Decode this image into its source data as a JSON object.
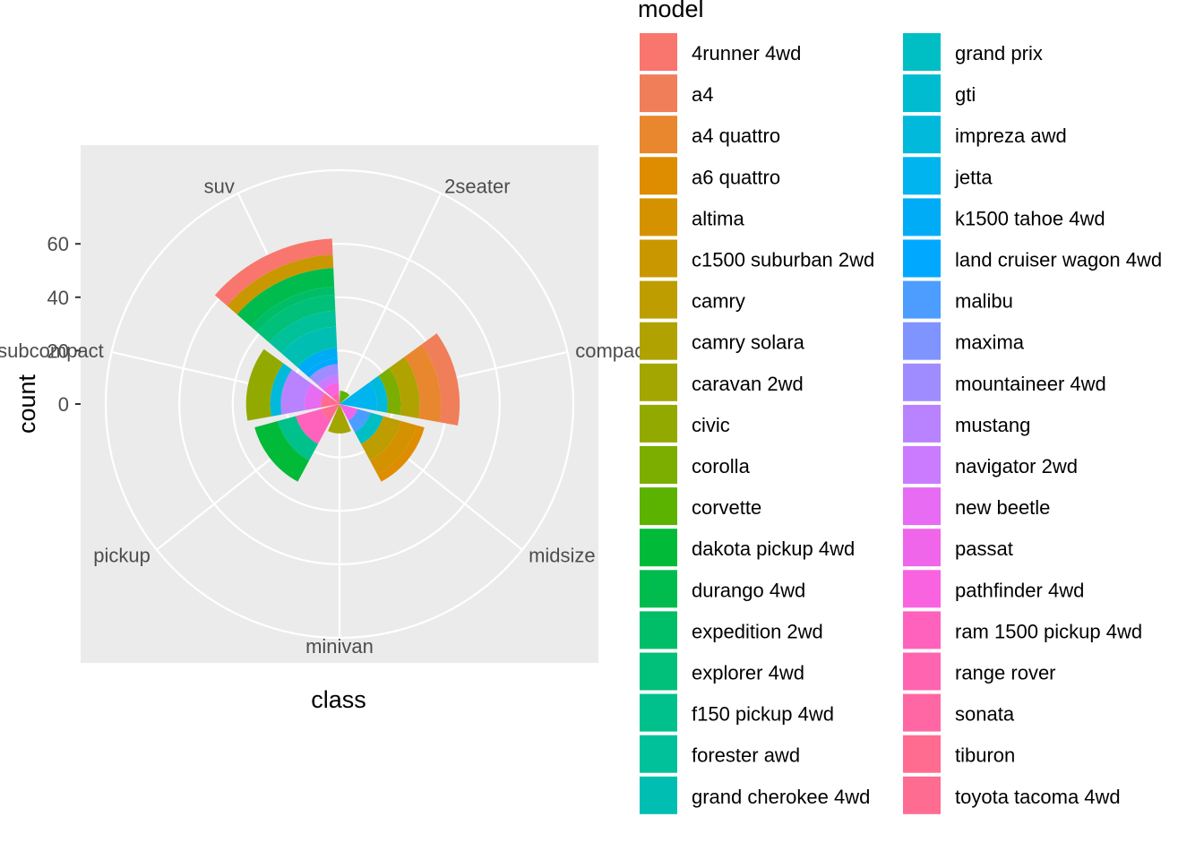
{
  "chart_data": {
    "type": "bar",
    "coord": "polar",
    "title": "",
    "xlabel": "class",
    "ylabel": "count",
    "legend_title": "model",
    "legend_position": "right",
    "ylim": [
      0,
      70
    ],
    "y_ticks": [
      0,
      20,
      40,
      60
    ],
    "y_tick_labels": [
      "0",
      "20",
      "40",
      "60"
    ],
    "categories": [
      "2seater",
      "compact",
      "midsize",
      "minivan",
      "pickup",
      "subcompact",
      "suv"
    ],
    "category_labels": [
      "2seater",
      "compact",
      "midsize",
      "minivan",
      "pickup",
      "subcompact",
      "suv"
    ],
    "models": [
      {
        "name": "4runner 4wd",
        "color": "#F8766D"
      },
      {
        "name": "a4",
        "color": "#F07E59"
      },
      {
        "name": "a4 quattro",
        "color": "#E8872E"
      },
      {
        "name": "a6 quattro",
        "color": "#DE8C00"
      },
      {
        "name": "altima",
        "color": "#D49200"
      },
      {
        "name": "c1500 suburban 2wd",
        "color": "#C99800"
      },
      {
        "name": "camry",
        "color": "#BD9D00"
      },
      {
        "name": "camry solara",
        "color": "#B0A200"
      },
      {
        "name": "caravan 2wd",
        "color": "#A3A500"
      },
      {
        "name": "civic",
        "color": "#92AA00"
      },
      {
        "name": "corolla",
        "color": "#7CAE00"
      },
      {
        "name": "corvette",
        "color": "#5BB300"
      },
      {
        "name": "dakota pickup 4wd",
        "color": "#00BA38"
      },
      {
        "name": "durango 4wd",
        "color": "#00BC4E"
      },
      {
        "name": "expedition 2wd",
        "color": "#00BE67"
      },
      {
        "name": "explorer 4wd",
        "color": "#00C07A"
      },
      {
        "name": "f150 pickup 4wd",
        "color": "#00C08B"
      },
      {
        "name": "forester awd",
        "color": "#00C19A"
      },
      {
        "name": "grand cherokee 4wd",
        "color": "#00BFB2"
      },
      {
        "name": "grand prix",
        "color": "#00BFC4"
      },
      {
        "name": "gti",
        "color": "#00BCD0"
      },
      {
        "name": "impreza awd",
        "color": "#00B9DB"
      },
      {
        "name": "jetta",
        "color": "#00B4EF"
      },
      {
        "name": "k1500 tahoe 4wd",
        "color": "#00ACF6"
      },
      {
        "name": "land cruiser wagon 4wd",
        "color": "#00A9FF"
      },
      {
        "name": "malibu",
        "color": "#4C9DFF"
      },
      {
        "name": "maxima",
        "color": "#7F94FF"
      },
      {
        "name": "mountaineer 4wd",
        "color": "#9F8CFF"
      },
      {
        "name": "mustang",
        "color": "#B983FF"
      },
      {
        "name": "navigator 2wd",
        "color": "#CB7BFF"
      },
      {
        "name": "new beetle",
        "color": "#E76BF3"
      },
      {
        "name": "passat",
        "color": "#F066EA"
      },
      {
        "name": "pathfinder 4wd",
        "color": "#F963DF"
      },
      {
        "name": "ram 1500 pickup 4wd",
        "color": "#FF62BC"
      },
      {
        "name": "range rover",
        "color": "#FF64B0"
      },
      {
        "name": "sonata",
        "color": "#FF67A4"
      },
      {
        "name": "tiburon",
        "color": "#FF6C90"
      },
      {
        "name": "toyota tacoma 4wd",
        "color": "#FF6C91"
      }
    ],
    "series": [
      {
        "category": "2seater",
        "stack": [
          {
            "model": "corvette",
            "value": 5
          }
        ]
      },
      {
        "category": "compact",
        "stack": [
          {
            "model": "jetta",
            "value": 14
          },
          {
            "model": "impreza awd",
            "value": 4
          },
          {
            "model": "corolla",
            "value": 5
          },
          {
            "model": "camry solara",
            "value": 7
          },
          {
            "model": "a4 quattro",
            "value": 8
          },
          {
            "model": "a4",
            "value": 7
          }
        ]
      },
      {
        "category": "midsize",
        "stack": [
          {
            "model": "passat",
            "value": 7
          },
          {
            "model": "malibu",
            "value": 5
          },
          {
            "model": "grand prix",
            "value": 5
          },
          {
            "model": "camry",
            "value": 7
          },
          {
            "model": "altima",
            "value": 6
          },
          {
            "model": "a6 quattro",
            "value": 3
          }
        ]
      },
      {
        "category": "minivan",
        "stack": [
          {
            "model": "caravan 2wd",
            "value": 11
          }
        ]
      },
      {
        "category": "pickup",
        "stack": [
          {
            "model": "toyota tacoma 4wd",
            "value": 7
          },
          {
            "model": "ram 1500 pickup 4wd",
            "value": 10
          },
          {
            "model": "f150 pickup 4wd",
            "value": 7
          },
          {
            "model": "dakota pickup 4wd",
            "value": 9
          }
        ]
      },
      {
        "category": "subcompact",
        "stack": [
          {
            "model": "tiburon",
            "value": 7
          },
          {
            "model": "new beetle",
            "value": 6
          },
          {
            "model": "mustang",
            "value": 9
          },
          {
            "model": "impreza awd",
            "value": 4
          },
          {
            "model": "civic",
            "value": 9
          }
        ]
      },
      {
        "category": "suv",
        "stack": [
          {
            "model": "range rover",
            "value": 4
          },
          {
            "model": "pathfinder 4wd",
            "value": 4
          },
          {
            "model": "navigator 2wd",
            "value": 3
          },
          {
            "model": "mountaineer 4wd",
            "value": 4
          },
          {
            "model": "land cruiser wagon 4wd",
            "value": 2
          },
          {
            "model": "k1500 tahoe 4wd",
            "value": 4
          },
          {
            "model": "grand cherokee 4wd",
            "value": 8
          },
          {
            "model": "forester awd",
            "value": 6
          },
          {
            "model": "explorer 4wd",
            "value": 6
          },
          {
            "model": "expedition 2wd",
            "value": 3
          },
          {
            "model": "durango 4wd",
            "value": 7
          },
          {
            "model": "c1500 suburban 2wd",
            "value": 5
          },
          {
            "model": "4runner 4wd",
            "value": 6
          }
        ]
      }
    ]
  }
}
